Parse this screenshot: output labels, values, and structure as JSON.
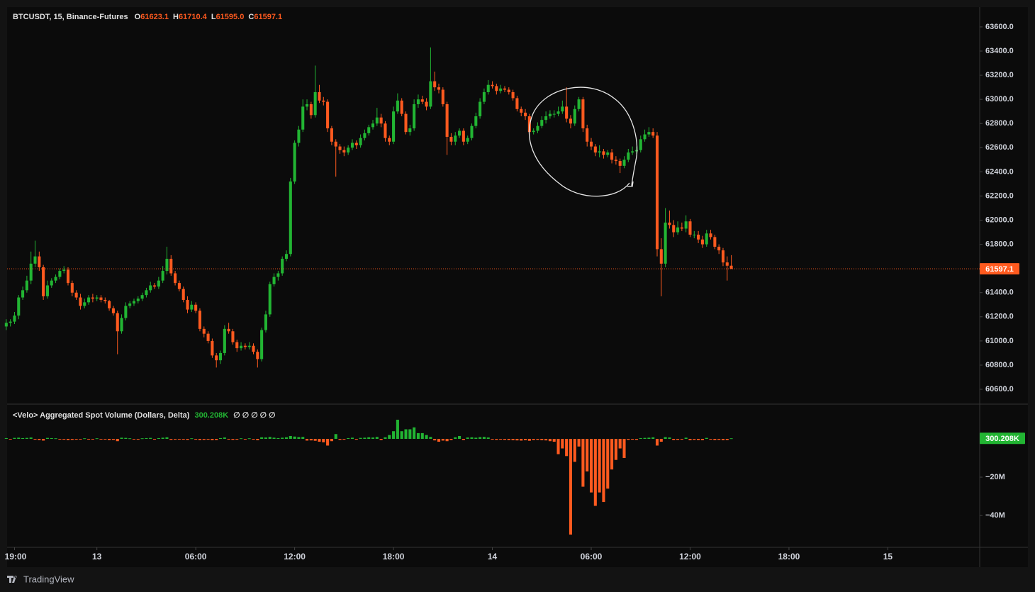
{
  "chart_data": [
    {
      "type": "candlestick",
      "title": "BTCUSDT, 15, Binance-Futures",
      "header_labels": [
        "O",
        "H",
        "L",
        "C"
      ],
      "header_values": [
        "61623.1",
        "61710.4",
        "61595.0",
        "61597.1"
      ],
      "up_color": "#22b533",
      "down_color": "#ff5a1f",
      "xlim": [
        0.2,
        236.3
      ],
      "xticks": [
        {
          "value": 2,
          "label": "19:00"
        },
        {
          "value": 22,
          "label": "13"
        },
        {
          "value": 46,
          "label": "06:00"
        },
        {
          "value": 70,
          "label": "12:00"
        },
        {
          "value": 94,
          "label": "18:00"
        },
        {
          "value": 118,
          "label": "14"
        },
        {
          "value": 142,
          "label": "06:00"
        },
        {
          "value": 166,
          "label": "12:00"
        },
        {
          "value": 190,
          "label": "18:00"
        },
        {
          "value": 214,
          "label": "15"
        }
      ],
      "ylim": [
        60477,
        63764
      ],
      "yticks": [
        {
          "value": 60600,
          "label": "60600.0"
        },
        {
          "value": 60800,
          "label": "60800.0"
        },
        {
          "value": 61000,
          "label": "61000.0"
        },
        {
          "value": 61200,
          "label": "61200.0"
        },
        {
          "value": 61400,
          "label": "61400.0"
        },
        {
          "value": 61600,
          "label": "61600.0"
        },
        {
          "value": 61800,
          "label": "61800.0"
        },
        {
          "value": 62000,
          "label": "62000.0"
        },
        {
          "value": 62200,
          "label": "62200.0"
        },
        {
          "value": 62400,
          "label": "62400.0"
        },
        {
          "value": 62600,
          "label": "62600.0"
        },
        {
          "value": 62800,
          "label": "62800.0"
        },
        {
          "value": 63000,
          "label": "63000.0"
        },
        {
          "value": 63200,
          "label": "63200.0"
        },
        {
          "value": 63400,
          "label": "63400.0"
        },
        {
          "value": 63600,
          "label": "63600.0"
        }
      ],
      "grid": false,
      "open": [
        61120,
        61150,
        61160,
        61210,
        61360,
        61420,
        61500,
        61640,
        61700,
        61610,
        61370,
        61460,
        61500,
        61530,
        61580,
        61590,
        61480,
        61400,
        61360,
        61290,
        61320,
        61360,
        61350,
        61360,
        61340,
        61330,
        61270,
        61230,
        61080,
        61190,
        61290,
        61310,
        61330,
        61350,
        61380,
        61420,
        61460,
        61450,
        61500,
        61580,
        61680,
        61560,
        61480,
        61430,
        61340,
        61260,
        61300,
        61250,
        61100,
        61060,
        61000,
        60880,
        60840,
        60900,
        61100,
        61080,
        60990,
        60940,
        60960,
        60950,
        60960,
        60910,
        60850,
        61090,
        61220,
        61470,
        61530,
        61560,
        61680,
        61720,
        62320,
        62640,
        62750,
        62940,
        62960,
        62870,
        63060,
        62990,
        62980,
        62760,
        62650,
        62610,
        62580,
        62560,
        62600,
        62640,
        62620,
        62680,
        62720,
        62770,
        62800,
        62850,
        62800,
        62680,
        62650,
        62900,
        62990,
        62880,
        62730,
        62760,
        62960,
        63000,
        62980,
        62940,
        63150,
        63100,
        63080,
        62960,
        62690,
        62650,
        62700,
        62740,
        62650,
        62680,
        62780,
        62860,
        62980,
        63060,
        63120,
        63110,
        63070,
        63090,
        63080,
        63060,
        63010,
        62920,
        62890,
        62860,
        62730,
        62740,
        62780,
        62830,
        62860,
        62880,
        62880,
        62900,
        62940,
        62840,
        62800,
        62920,
        63000,
        62760,
        62650,
        62610,
        62560,
        62570,
        62540,
        62560,
        62500,
        62490,
        62450,
        62500,
        62560,
        62570,
        62580,
        62670,
        62710,
        62730,
        62700,
        61760,
        61640,
        61980,
        61960,
        61900,
        61940,
        61930,
        61990,
        61880,
        61880,
        61840,
        61800,
        61890,
        61860,
        61780,
        61750,
        61650,
        61623.1
      ],
      "high": [
        61180,
        61180,
        61240,
        61380,
        61450,
        61540,
        61740,
        61830,
        61740,
        61630,
        61500,
        61520,
        61550,
        61600,
        61620,
        61610,
        61500,
        61420,
        61390,
        61350,
        61380,
        61390,
        61380,
        61380,
        61360,
        61340,
        61290,
        61250,
        61220,
        61320,
        61330,
        61350,
        61370,
        61400,
        61440,
        61490,
        61480,
        61530,
        61620,
        61780,
        61710,
        61580,
        61500,
        61450,
        61370,
        61330,
        61320,
        61270,
        61120,
        61080,
        61020,
        60900,
        60920,
        61130,
        61150,
        61100,
        61010,
        60990,
        60980,
        60990,
        60980,
        60930,
        61110,
        61250,
        61490,
        61560,
        61580,
        61700,
        61750,
        62350,
        62660,
        62780,
        63000,
        63000,
        62980,
        63280,
        63120,
        63020,
        63000,
        62780,
        62670,
        62630,
        62610,
        62620,
        62670,
        62660,
        62710,
        62750,
        62790,
        62830,
        62930,
        62880,
        62820,
        62700,
        62940,
        63050,
        63010,
        62900,
        62790,
        63000,
        63040,
        63030,
        63010,
        63430,
        63230,
        63130,
        63100,
        62980,
        62720,
        62730,
        62760,
        62760,
        62700,
        62800,
        62890,
        63010,
        63090,
        63160,
        63150,
        63130,
        63120,
        63110,
        63100,
        63080,
        63030,
        62940,
        62920,
        62880,
        62760,
        62810,
        62860,
        62900,
        62910,
        62910,
        62940,
        62990,
        63100,
        62870,
        62950,
        63020,
        63020,
        62790,
        62680,
        62630,
        62620,
        62590,
        62580,
        62590,
        62530,
        62510,
        62530,
        62590,
        62610,
        62610,
        62700,
        62750,
        62770,
        62760,
        62730,
        61850,
        62100,
        62080,
        62000,
        61990,
        61980,
        62040,
        62010,
        61910,
        61910,
        61870,
        61920,
        61920,
        61880,
        61800,
        61770,
        61700,
        61710.4
      ],
      "low": [
        61090,
        61120,
        61140,
        61180,
        61340,
        61400,
        61470,
        61610,
        61580,
        61340,
        61350,
        61440,
        61480,
        61510,
        61560,
        61460,
        61370,
        61340,
        61260,
        61270,
        61300,
        61320,
        61330,
        61320,
        61310,
        61250,
        61210,
        60890,
        61060,
        61170,
        61270,
        61290,
        61310,
        61330,
        61360,
        61400,
        61430,
        61430,
        61480,
        61550,
        61540,
        61460,
        61410,
        61320,
        61230,
        61240,
        61230,
        61080,
        61030,
        60980,
        60860,
        60780,
        60810,
        60880,
        61060,
        60970,
        60910,
        60920,
        60930,
        60930,
        60890,
        60780,
        60830,
        61070,
        61200,
        61450,
        61500,
        61540,
        61660,
        61700,
        62300,
        62610,
        62730,
        62910,
        62840,
        62850,
        62970,
        62950,
        62730,
        62620,
        62360,
        62550,
        62530,
        62540,
        62580,
        62590,
        62600,
        62660,
        62700,
        62750,
        62780,
        62770,
        62650,
        62620,
        62630,
        62880,
        62860,
        62710,
        62700,
        62740,
        62930,
        62960,
        62910,
        62920,
        63070,
        63050,
        62940,
        62540,
        62620,
        62620,
        62680,
        62620,
        62630,
        62660,
        62760,
        62840,
        62960,
        63040,
        63090,
        63040,
        63050,
        63060,
        63040,
        62990,
        62900,
        62860,
        62830,
        62700,
        62710,
        62720,
        62760,
        62800,
        62840,
        62850,
        62860,
        62880,
        62810,
        62760,
        62780,
        62900,
        62730,
        62610,
        62580,
        62530,
        62520,
        62510,
        62520,
        62470,
        62460,
        62390,
        62430,
        62480,
        62540,
        62550,
        62560,
        62650,
        62690,
        62680,
        61700,
        61370,
        61610,
        61930,
        61860,
        61880,
        61910,
        61900,
        61860,
        61850,
        61810,
        61770,
        61780,
        61840,
        61760,
        61720,
        61620,
        61500,
        61595.0
      ],
      "close": [
        61150,
        61160,
        61210,
        61360,
        61420,
        61500,
        61640,
        61700,
        61610,
        61370,
        61460,
        61500,
        61530,
        61580,
        61590,
        61480,
        61400,
        61360,
        61290,
        61320,
        61360,
        61350,
        61360,
        61340,
        61330,
        61270,
        61230,
        61080,
        61190,
        61290,
        61310,
        61330,
        61350,
        61380,
        61420,
        61460,
        61450,
        61500,
        61580,
        61680,
        61560,
        61480,
        61430,
        61340,
        61260,
        61300,
        61250,
        61100,
        61060,
        61000,
        60880,
        60840,
        60900,
        61100,
        61080,
        60990,
        60940,
        60960,
        60950,
        60960,
        60910,
        60850,
        61090,
        61220,
        61470,
        61530,
        61560,
        61680,
        61720,
        62320,
        62640,
        62750,
        62940,
        62960,
        62870,
        63060,
        62990,
        62980,
        62760,
        62650,
        62610,
        62580,
        62560,
        62600,
        62640,
        62620,
        62680,
        62720,
        62770,
        62800,
        62850,
        62800,
        62680,
        62650,
        62900,
        62990,
        62880,
        62730,
        62760,
        62960,
        63000,
        62980,
        62940,
        63150,
        63100,
        63080,
        62960,
        62690,
        62650,
        62700,
        62740,
        62650,
        62680,
        62780,
        62860,
        62980,
        63060,
        63120,
        63110,
        63070,
        63090,
        63080,
        63060,
        63010,
        62920,
        62890,
        62860,
        62730,
        62740,
        62780,
        62830,
        62860,
        62880,
        62880,
        62900,
        62940,
        62840,
        62800,
        62920,
        63000,
        62760,
        62650,
        62610,
        62560,
        62570,
        62540,
        62560,
        62500,
        62490,
        62450,
        62500,
        62560,
        62570,
        62580,
        62670,
        62710,
        62730,
        62700,
        61760,
        61640,
        61980,
        61960,
        61900,
        61940,
        61930,
        61990,
        61880,
        61880,
        61840,
        61800,
        61890,
        61860,
        61780,
        61750,
        61650,
        61623.1,
        61597.1
      ]
    },
    {
      "type": "bar",
      "title": "<Velo> Aggregated Spot Volume (Dollars, Delta)",
      "last_value_label": "300.208K",
      "placeholders": "∅ ∅ ∅ ∅ ∅",
      "up_color": "#22b533",
      "down_color": "#ff5a1f",
      "ylim": [
        -56670000,
        18150000
      ],
      "yticks": [
        {
          "value": -20000000,
          "label": "−20M"
        },
        {
          "value": -40000000,
          "label": "−40M"
        }
      ],
      "values": [
        400000,
        -300000,
        500000,
        600000,
        400000,
        500000,
        700000,
        -400000,
        -600000,
        -900000,
        500000,
        400000,
        300000,
        -300000,
        -400000,
        -600000,
        -500000,
        -400000,
        -300000,
        300000,
        -300000,
        -300000,
        300000,
        -300000,
        -300000,
        -600000,
        -500000,
        -1200000,
        600000,
        500000,
        300000,
        -300000,
        -400000,
        300000,
        400000,
        500000,
        -300000,
        400000,
        600000,
        800000,
        -500000,
        -400000,
        -300000,
        -400000,
        -500000,
        300000,
        -400000,
        -600000,
        -500000,
        -400000,
        -700000,
        -600000,
        400000,
        700000,
        -300000,
        -500000,
        -400000,
        300000,
        -300000,
        300000,
        -400000,
        -700000,
        800000,
        700000,
        1000000,
        600000,
        400000,
        600000,
        800000,
        1500000,
        1200000,
        900000,
        1000000,
        -900000,
        -800000,
        -1000000,
        -1500000,
        -1800000,
        -3500000,
        -1200000,
        2500000,
        -500000,
        -400000,
        400000,
        600000,
        -400000,
        500000,
        600000,
        800000,
        700000,
        1000000,
        -600000,
        800000,
        2000000,
        4000000,
        10000000,
        4000000,
        5000000,
        5000000,
        6000000,
        3000000,
        3000000,
        2000000,
        1000000,
        -800000,
        -1500000,
        -900000,
        -1200000,
        -600000,
        800000,
        1500000,
        -600000,
        700000,
        800000,
        600000,
        900000,
        1000000,
        700000,
        -400000,
        -500000,
        -400000,
        -500000,
        -600000,
        -700000,
        -800000,
        -900000,
        -700000,
        -1000000,
        -600000,
        -500000,
        -700000,
        -800000,
        -1200000,
        -1500000,
        -8000000,
        -5000000,
        -9000000,
        -50000000,
        -12000000,
        -4000000,
        -25000000,
        -17000000,
        -28000000,
        -35000000,
        -28000000,
        -33000000,
        -26000000,
        -16000000,
        -11000000,
        -5000000,
        -10000000,
        -500000,
        -400000,
        -500000,
        400000,
        500000,
        600000,
        800000,
        -3500000,
        -1500000,
        900000,
        700000,
        -600000,
        -500000,
        -400000,
        600000,
        -700000,
        -500000,
        -600000,
        -700000,
        500000,
        -400000,
        -600000,
        -500000,
        -700000,
        -600000,
        300208
      ]
    }
  ],
  "footer": {
    "brand": "TradingView"
  }
}
